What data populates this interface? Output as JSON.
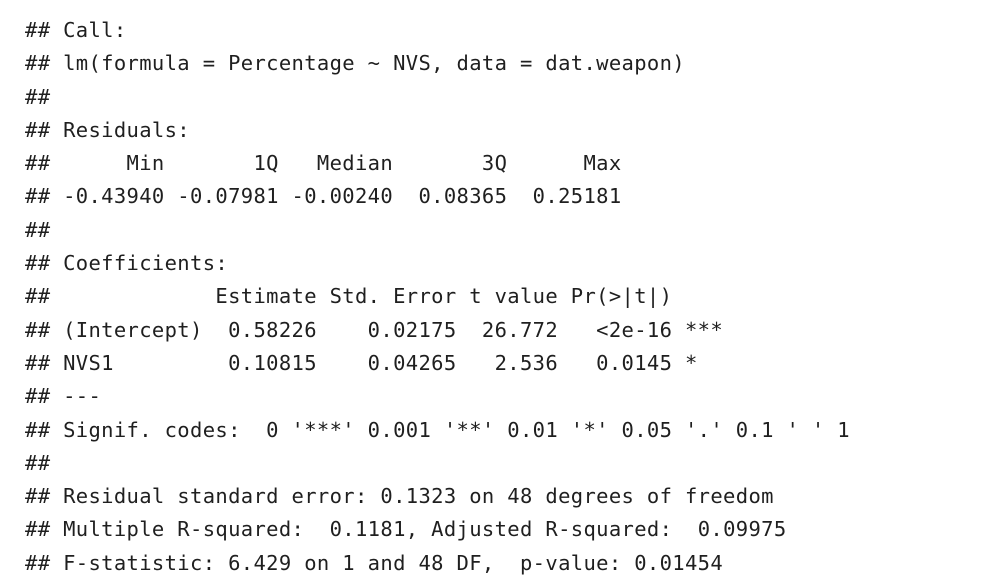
{
  "output_lines": [
    "## Call:",
    "## lm(formula = Percentage ~ NVS, data = dat.weapon)",
    "##",
    "## Residuals:",
    "##      Min       1Q   Median       3Q      Max ",
    "## -0.43940 -0.07981 -0.00240  0.08365  0.25181 ",
    "##",
    "## Coefficients:",
    "##             Estimate Std. Error t value Pr(>|t|)    ",
    "## (Intercept)  0.58226    0.02175  26.772   <2e-16 ***",
    "## NVS1         0.10815    0.04265   2.536   0.0145 *  ",
    "## ---",
    "## Signif. codes:  0 '***' 0.001 '**' 0.01 '*' 0.05 '.' 0.1 ' ' 1",
    "##",
    "## Residual standard error: 0.1323 on 48 degrees of freedom",
    "## Multiple R-squared:  0.1181,\tAdjusted R-squared:  0.09975 ",
    "## F-statistic: 6.429 on 1 and 48 DF,  p-value: 0.01454"
  ]
}
